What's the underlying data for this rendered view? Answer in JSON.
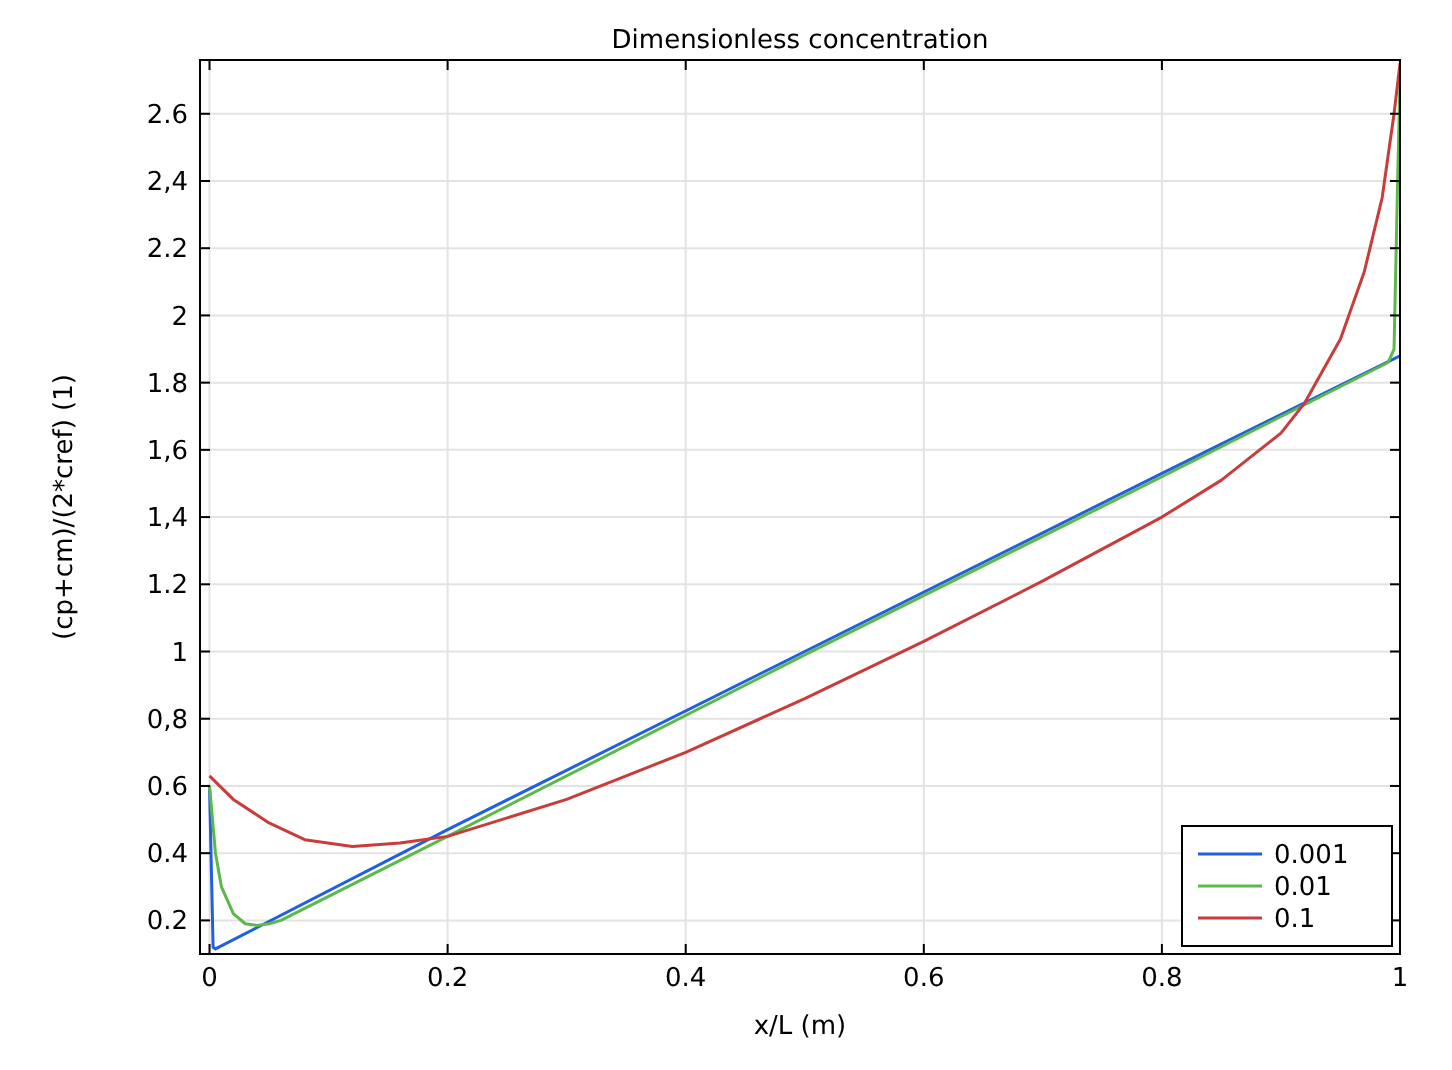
{
  "chart_data": {
    "type": "line",
    "title": "Dimensionless concentration",
    "xlabel": "x/L (m)",
    "ylabel": "(cp+cm)/(2*cref) (1)",
    "xlim": [
      -0.008,
      1
    ],
    "xticks": [
      0,
      0.2,
      0.4,
      0.6,
      0.8,
      1
    ],
    "ylim": [
      0.1,
      2.76
    ],
    "yticks": [
      {
        "value": 0.2,
        "label": "0.2"
      },
      {
        "value": 0.4,
        "label": "0.4"
      },
      {
        "value": 0.6,
        "label": "0.6"
      },
      {
        "value": 0.8,
        "label": "0,8"
      },
      {
        "value": 1,
        "label": "1"
      },
      {
        "value": 1.2,
        "label": "1.2"
      },
      {
        "value": 1.4,
        "label": "1,4"
      },
      {
        "value": 1.6,
        "label": "1,6"
      },
      {
        "value": 1.8,
        "label": "1.8"
      },
      {
        "value": 2,
        "label": "2"
      },
      {
        "value": 2.2,
        "label": "2.2"
      },
      {
        "value": 2.4,
        "label": "2,4"
      },
      {
        "value": 2.6,
        "label": "2.6"
      }
    ],
    "grid": true,
    "legend": "bottom right",
    "series": [
      {
        "name": "0.001",
        "color": "#1f5fe0",
        "x": [
          0,
          0.003,
          0.005,
          0.2,
          0.5,
          0.8,
          1
        ],
        "values": [
          0.6,
          0.12,
          0.115,
          0.47,
          1.0,
          1.53,
          1.88
        ]
      },
      {
        "name": "0.01",
        "color": "#5cb848",
        "x": [
          0,
          0.005,
          0.01,
          0.02,
          0.03,
          0.04,
          0.05,
          0.06,
          0.2,
          0.5,
          0.8,
          0.99,
          0.995,
          0.998,
          1
        ],
        "values": [
          0.6,
          0.4,
          0.3,
          0.22,
          0.19,
          0.185,
          0.19,
          0.2,
          0.45,
          0.99,
          1.52,
          1.86,
          1.9,
          2.4,
          2.7
        ]
      },
      {
        "name": "0.1",
        "color": "#c83c3c",
        "x": [
          0,
          0.02,
          0.05,
          0.08,
          0.12,
          0.16,
          0.2,
          0.3,
          0.4,
          0.5,
          0.6,
          0.7,
          0.8,
          0.85,
          0.9,
          0.92,
          0.95,
          0.97,
          0.985,
          0.995,
          1
        ],
        "values": [
          0.63,
          0.56,
          0.49,
          0.44,
          0.42,
          0.43,
          0.45,
          0.56,
          0.7,
          0.86,
          1.03,
          1.21,
          1.4,
          1.51,
          1.65,
          1.74,
          1.93,
          2.13,
          2.35,
          2.6,
          2.75
        ]
      }
    ]
  }
}
